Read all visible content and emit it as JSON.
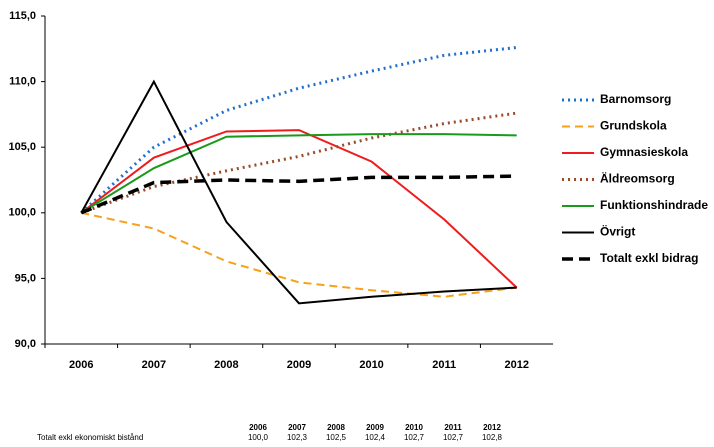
{
  "chart_data": {
    "type": "line",
    "categories": [
      "2006",
      "2007",
      "2008",
      "2009",
      "2010",
      "2011",
      "2012"
    ],
    "series": [
      {
        "name": "Barnomsorg",
        "color": "#1f6fd0",
        "style": "dotted",
        "values": [
          100,
          105.0,
          107.8,
          109.5,
          110.8,
          112.0,
          112.6
        ]
      },
      {
        "name": "Grundskola",
        "color": "#f7a11a",
        "style": "dashed",
        "values": [
          100,
          98.8,
          96.3,
          94.7,
          94.1,
          93.6,
          94.3
        ]
      },
      {
        "name": "Gymnasieskola",
        "color": "#ee1c1c",
        "style": "solid",
        "values": [
          100,
          104.2,
          106.2,
          106.3,
          103.9,
          99.5,
          94.3
        ]
      },
      {
        "name": "Äldreomsorg",
        "color": "#9b4a2a",
        "style": "dotted",
        "values": [
          100,
          102.0,
          103.2,
          104.3,
          105.7,
          106.8,
          107.6
        ]
      },
      {
        "name": "Funktionshindrade",
        "color": "#1a9a1a",
        "style": "solid",
        "values": [
          100,
          103.4,
          105.8,
          105.9,
          106.0,
          106.0,
          105.9
        ]
      },
      {
        "name": "Övrigt",
        "color": "#000000",
        "style": "solid",
        "values": [
          100,
          110.0,
          99.3,
          93.1,
          93.6,
          94.0,
          94.3
        ]
      },
      {
        "name": "Totalt exkl bidrag",
        "color": "#000000",
        "style": "bold-dashed",
        "values": [
          100,
          102.3,
          102.5,
          102.4,
          102.7,
          102.7,
          102.8
        ]
      }
    ],
    "ylim": [
      90,
      115
    ],
    "yticks": [
      {
        "value": 90,
        "label": "90,0"
      },
      {
        "value": 95,
        "label": "95,0"
      },
      {
        "value": 100,
        "label": "100,0"
      },
      {
        "value": 105,
        "label": "105,0"
      },
      {
        "value": 110,
        "label": "110,0"
      },
      {
        "value": 115,
        "label": "115,0"
      }
    ],
    "legend": "right"
  },
  "table": {
    "columns": [
      "2006",
      "2007",
      "2008",
      "2009",
      "2010",
      "2011",
      "2012"
    ],
    "rows": [
      {
        "label": "Totalt exkl ekonomiskt bistånd",
        "cells": [
          "100,0",
          "102,3",
          "102,5",
          "102,4",
          "102,7",
          "102,7",
          "102,8"
        ]
      }
    ]
  }
}
